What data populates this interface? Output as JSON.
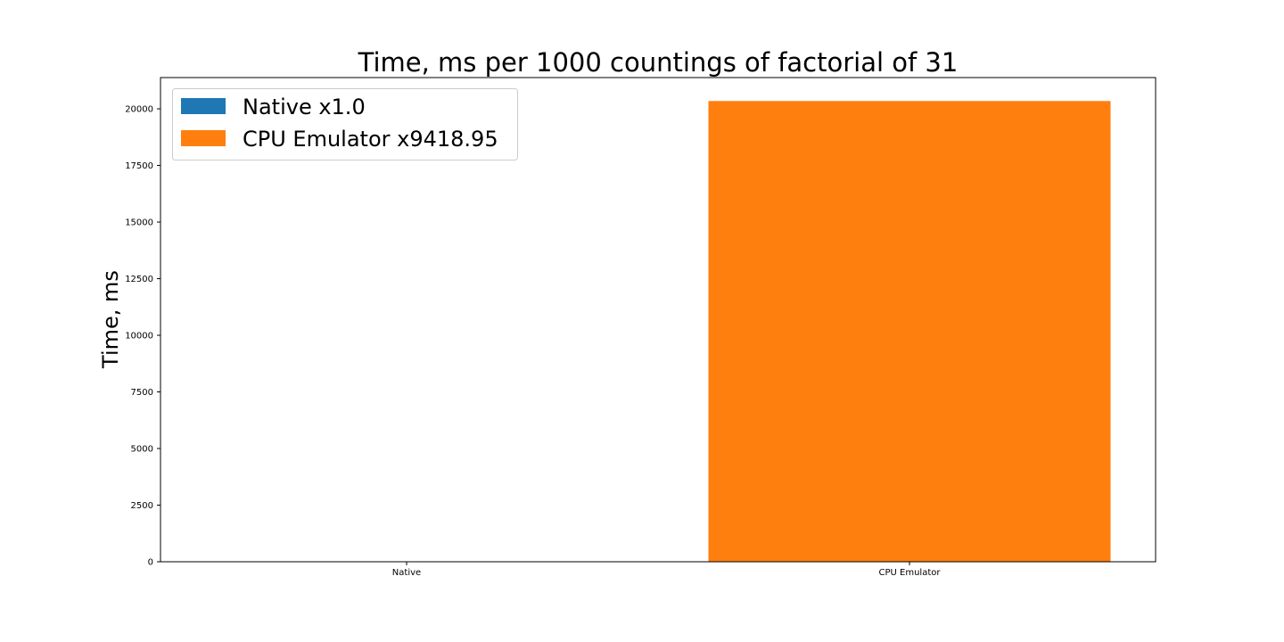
{
  "chart_data": {
    "type": "bar",
    "title": "Time, ms per 1000 countings of factorial of 31",
    "xlabel": "",
    "ylabel": "Time, ms",
    "categories": [
      "Native",
      "CPU Emulator"
    ],
    "values": [
      2.16,
      20345
    ],
    "colors": [
      "#1f77b4",
      "#ff7f0e"
    ],
    "ylim": [
      0,
      21380
    ],
    "yticks": [
      0,
      2500,
      5000,
      7500,
      10000,
      12500,
      15000,
      17500,
      20000
    ],
    "grid": false,
    "legend": {
      "placement": "top-left",
      "entries": [
        {
          "label": "Native x1.0",
          "color": "#1f77b4"
        },
        {
          "label": "CPU Emulator x9418.95",
          "color": "#ff7f0e"
        }
      ]
    }
  }
}
